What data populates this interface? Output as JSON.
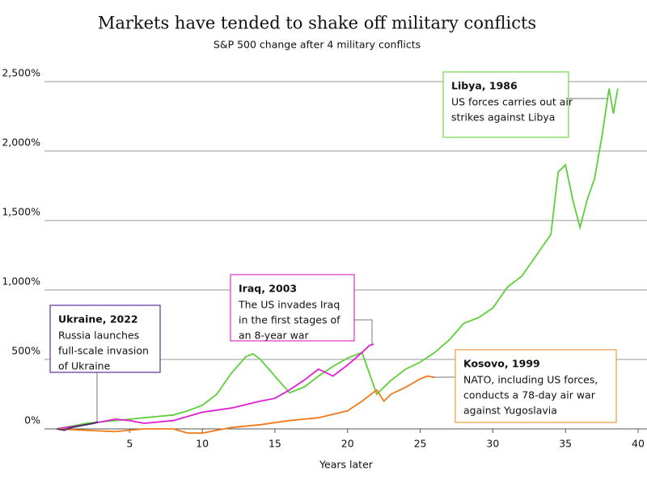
{
  "chart_data": {
    "type": "line",
    "title": "Markets have tended to shake off military conflicts",
    "subtitle": "S&P 500 change after 4 military conflicts",
    "xlabel": "Years later",
    "xlim": [
      0,
      40
    ],
    "xticks": [
      5,
      10,
      15,
      20,
      25,
      30,
      35,
      40
    ],
    "ylim": [
      0,
      2500
    ],
    "yticks": [
      {
        "value": 0,
        "label": "0%"
      },
      {
        "value": 500,
        "label": "500%"
      },
      {
        "value": 1000,
        "label": "1,000%"
      },
      {
        "value": 1500,
        "label": "1,500%"
      },
      {
        "value": 2000,
        "label": "2,000%"
      },
      {
        "value": 2500,
        "label": "2,500%"
      }
    ],
    "grid": true,
    "series": [
      {
        "name": "Libya, 1986",
        "color": "#5ecf3a",
        "x": [
          0,
          1,
          2,
          3,
          4,
          5,
          6,
          7,
          8,
          9,
          10,
          11,
          12,
          13,
          13.5,
          14,
          15,
          16,
          17,
          18,
          19,
          20,
          21,
          21.5,
          22,
          23,
          24,
          25,
          26,
          27,
          28,
          29,
          30,
          31,
          32,
          33,
          34,
          34.5,
          35,
          35.5,
          36,
          36.5,
          37,
          37.5,
          38,
          38.3,
          38.6
        ],
        "values": [
          0,
          20,
          40,
          50,
          60,
          70,
          80,
          90,
          100,
          130,
          170,
          250,
          400,
          520,
          540,
          500,
          380,
          260,
          300,
          380,
          450,
          510,
          550,
          400,
          250,
          350,
          430,
          480,
          550,
          640,
          760,
          800,
          870,
          1020,
          1100,
          1250,
          1400,
          1850,
          1900,
          1650,
          1450,
          1650,
          1800,
          2100,
          2450,
          2270,
          2450
        ]
      },
      {
        "name": "Iraq, 2003",
        "color": "#e020d0",
        "x": [
          0,
          2,
          4,
          5,
          6,
          8,
          10,
          12,
          14,
          15,
          16,
          17,
          18,
          19,
          20,
          21,
          21.5,
          21.8
        ],
        "values": [
          0,
          30,
          70,
          60,
          40,
          60,
          120,
          150,
          200,
          220,
          280,
          350,
          430,
          380,
          460,
          550,
          600,
          610
        ]
      },
      {
        "name": "Kosovo, 1999",
        "color": "#f07a1a",
        "x": [
          0,
          2,
          4,
          6,
          8,
          9,
          10,
          11,
          12,
          14,
          16,
          18,
          20,
          21,
          22,
          22.5,
          23,
          24,
          25,
          25.5,
          26
        ],
        "values": [
          0,
          -10,
          -20,
          0,
          0,
          -30,
          -30,
          -10,
          10,
          30,
          60,
          80,
          130,
          200,
          280,
          200,
          250,
          300,
          360,
          380,
          370
        ]
      },
      {
        "name": "Ukraine, 2022",
        "color": "#3d2d5c",
        "x": [
          0,
          0.5,
          1,
          1.5,
          2,
          2.5,
          2.8
        ],
        "values": [
          0,
          -10,
          10,
          20,
          30,
          40,
          50
        ]
      }
    ],
    "annotations": [
      {
        "title": "Libya, 1986",
        "lines": [
          "US forces carries out air",
          "strikes against Libya"
        ],
        "color": "#7ed957"
      },
      {
        "title": "Iraq, 2003",
        "lines": [
          "The US invades Iraq",
          "in the first stages of",
          "an 8-year war"
        ],
        "color": "#e040d0"
      },
      {
        "title": "Kosovo, 1999",
        "lines": [
          "NATO, including US forces,",
          "conducts a 78-day air war",
          "against Yugoslavia"
        ],
        "color": "#f0a050"
      },
      {
        "title": "Ukraine, 2022",
        "lines": [
          "Russia launches",
          "full-scale invasion",
          "of Ukraine"
        ],
        "color": "#6a3fa0"
      }
    ]
  }
}
